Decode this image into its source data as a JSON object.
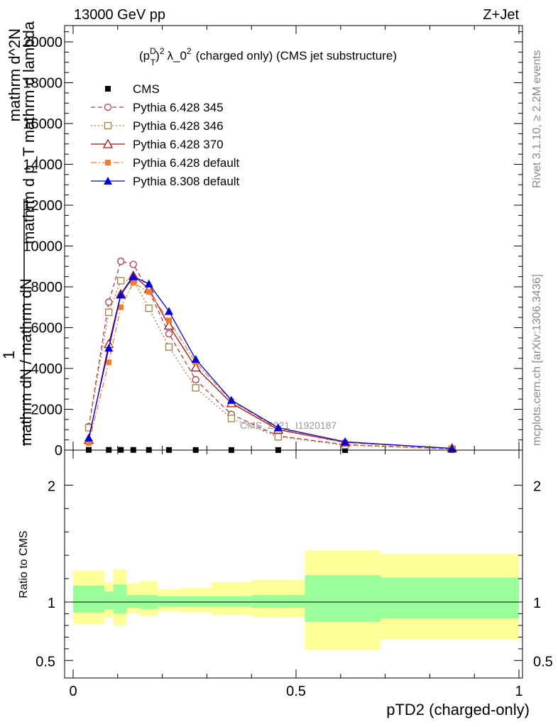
{
  "header": {
    "left": "13000 GeV pp",
    "right": "Z+Jet"
  },
  "side_labels": {
    "rivet": "Rivet 3.1.10, ≥ 2.2M events",
    "mcplots": "mcplots.cern.ch [arXiv:1306.3436]"
  },
  "watermark": "CMS_2021_I1920187",
  "chart_data": [
    {
      "type": "line",
      "title_parts": {
        "p": "(p",
        "sup": "D",
        "sub": "T",
        "close": ")",
        "rest": "λ_0",
        "rest_sup": "2",
        "tail": "(charged only) (CMS jet substructure)",
        "power": "2"
      },
      "ylabel": "1 / mathrm dN / mathrm d p_Tmathrm d lambda | mathrm dN",
      "ylabel_lines": [
        "mathrm d²N",
        "mathrm d p_Tmathrm d lambda",
        "1",
        "mathrm dN / mathrm dN"
      ],
      "ylabel_line_a": "mathrm d^2N",
      "ylabel_line_b": "mathrm d p_T mathrm d lambda",
      "ylabel_line_c": "1",
      "ylabel_line_d": "mathrm dN / mathrm dN",
      "xlim": [
        0,
        1
      ],
      "ylim": [
        0,
        20800
      ],
      "yticks": [
        0,
        2000,
        4000,
        6000,
        8000,
        10000,
        12000,
        14000,
        16000,
        18000,
        20000
      ],
      "ytick_labels": [
        "0",
        "2000",
        "4000",
        "6000",
        "8000",
        "10000",
        "12000",
        "14000",
        "16000",
        "18000",
        "20000"
      ],
      "legend_position": "top-left",
      "series": [
        {
          "name": "CMS",
          "color": "#000000",
          "marker": "square",
          "x": [
            0.035,
            0.08,
            0.107,
            0.135,
            0.17,
            0.215,
            0.275,
            0.355,
            0.46,
            0.61,
            0.85
          ],
          "y": [
            10,
            10,
            12,
            10,
            9,
            8,
            6,
            4,
            3,
            1,
            1
          ]
        },
        {
          "name": "Pythia 6.428 345",
          "color": "#b03a48",
          "dash": "6,4",
          "marker": "circle-open",
          "x": [
            0.035,
            0.08,
            0.107,
            0.135,
            0.17,
            0.215,
            0.275,
            0.355,
            0.46,
            0.61,
            0.85
          ],
          "y": [
            1150,
            7250,
            9250,
            9100,
            7800,
            5700,
            3450,
            1750,
            700,
            270,
            60
          ]
        },
        {
          "name": "Pythia 6.428 346",
          "color": "#a08040",
          "dash": "2,3",
          "marker": "square-open",
          "x": [
            0.035,
            0.08,
            0.107,
            0.135,
            0.17,
            0.215,
            0.275,
            0.355,
            0.46,
            0.61,
            0.85
          ],
          "y": [
            1100,
            6750,
            8300,
            8350,
            6950,
            5050,
            3050,
            1550,
            650,
            240,
            50
          ]
        },
        {
          "name": "Pythia 6.428 370",
          "color": "#a01010",
          "dash": "",
          "marker": "triangle-open",
          "x": [
            0.035,
            0.08,
            0.107,
            0.135,
            0.17,
            0.215,
            0.275,
            0.355,
            0.46,
            0.61,
            0.85
          ],
          "y": [
            500,
            5200,
            7650,
            8550,
            7900,
            6100,
            4050,
            2300,
            1000,
            380,
            90
          ]
        },
        {
          "name": "Pythia 6.428 default",
          "color": "#f08030",
          "dash": "8,3,2,3",
          "marker": "square-filled",
          "x": [
            0.035,
            0.08,
            0.107,
            0.135,
            0.17,
            0.215,
            0.275,
            0.355,
            0.46,
            0.61,
            0.85
          ],
          "y": [
            350,
            4300,
            7000,
            8200,
            7750,
            6350,
            4300,
            2400,
            1050,
            390,
            80
          ]
        },
        {
          "name": "Pythia 8.308 default",
          "color": "#0000dd",
          "dash": "",
          "marker": "triangle-filled",
          "x": [
            0.035,
            0.08,
            0.107,
            0.135,
            0.17,
            0.215,
            0.275,
            0.355,
            0.46,
            0.61,
            0.85
          ],
          "y": [
            600,
            5000,
            7600,
            8500,
            8150,
            6800,
            4450,
            2450,
            1100,
            410,
            80
          ]
        }
      ]
    },
    {
      "type": "area",
      "ylabel": "Ratio to CMS",
      "xlabel": "pTD2 (charged-only)",
      "xlim": [
        0,
        1
      ],
      "ylim": [
        0.35,
        2.3
      ],
      "xticks": [
        0,
        0.5,
        1
      ],
      "xtick_labels": [
        "0",
        "0.5",
        "1"
      ],
      "yticks": [
        0.5,
        1,
        2
      ],
      "ytick_labels": [
        "0.5",
        "1",
        "2"
      ],
      "bins": [
        {
          "lo": 0.0,
          "hi": 0.07,
          "inner": [
            0.91,
            1.14
          ],
          "outer": [
            0.81,
            1.27
          ]
        },
        {
          "lo": 0.07,
          "hi": 0.09,
          "inner": [
            0.94,
            1.09
          ],
          "outer": [
            0.87,
            1.17
          ]
        },
        {
          "lo": 0.09,
          "hi": 0.12,
          "inner": [
            0.9,
            1.15
          ],
          "outer": [
            0.8,
            1.28
          ]
        },
        {
          "lo": 0.12,
          "hi": 0.15,
          "inner": [
            0.95,
            1.06
          ],
          "outer": [
            0.9,
            1.16
          ]
        },
        {
          "lo": 0.15,
          "hi": 0.19,
          "inner": [
            0.94,
            1.06
          ],
          "outer": [
            0.88,
            1.18
          ]
        },
        {
          "lo": 0.19,
          "hi": 0.24,
          "inner": [
            0.96,
            1.05
          ],
          "outer": [
            0.92,
            1.11
          ]
        },
        {
          "lo": 0.24,
          "hi": 0.31,
          "inner": [
            0.96,
            1.05
          ],
          "outer": [
            0.91,
            1.12
          ]
        },
        {
          "lo": 0.31,
          "hi": 0.4,
          "inner": [
            0.96,
            1.05
          ],
          "outer": [
            0.89,
            1.17
          ]
        },
        {
          "lo": 0.4,
          "hi": 0.52,
          "inner": [
            0.95,
            1.06
          ],
          "outer": [
            0.87,
            1.19
          ]
        },
        {
          "lo": 0.52,
          "hi": 0.69,
          "inner": [
            0.83,
            1.23
          ],
          "outer": [
            0.59,
            1.44
          ]
        },
        {
          "lo": 0.69,
          "hi": 1.0,
          "inner": [
            0.86,
            1.21
          ],
          "outer": [
            0.68,
            1.41
          ]
        }
      ]
    }
  ]
}
